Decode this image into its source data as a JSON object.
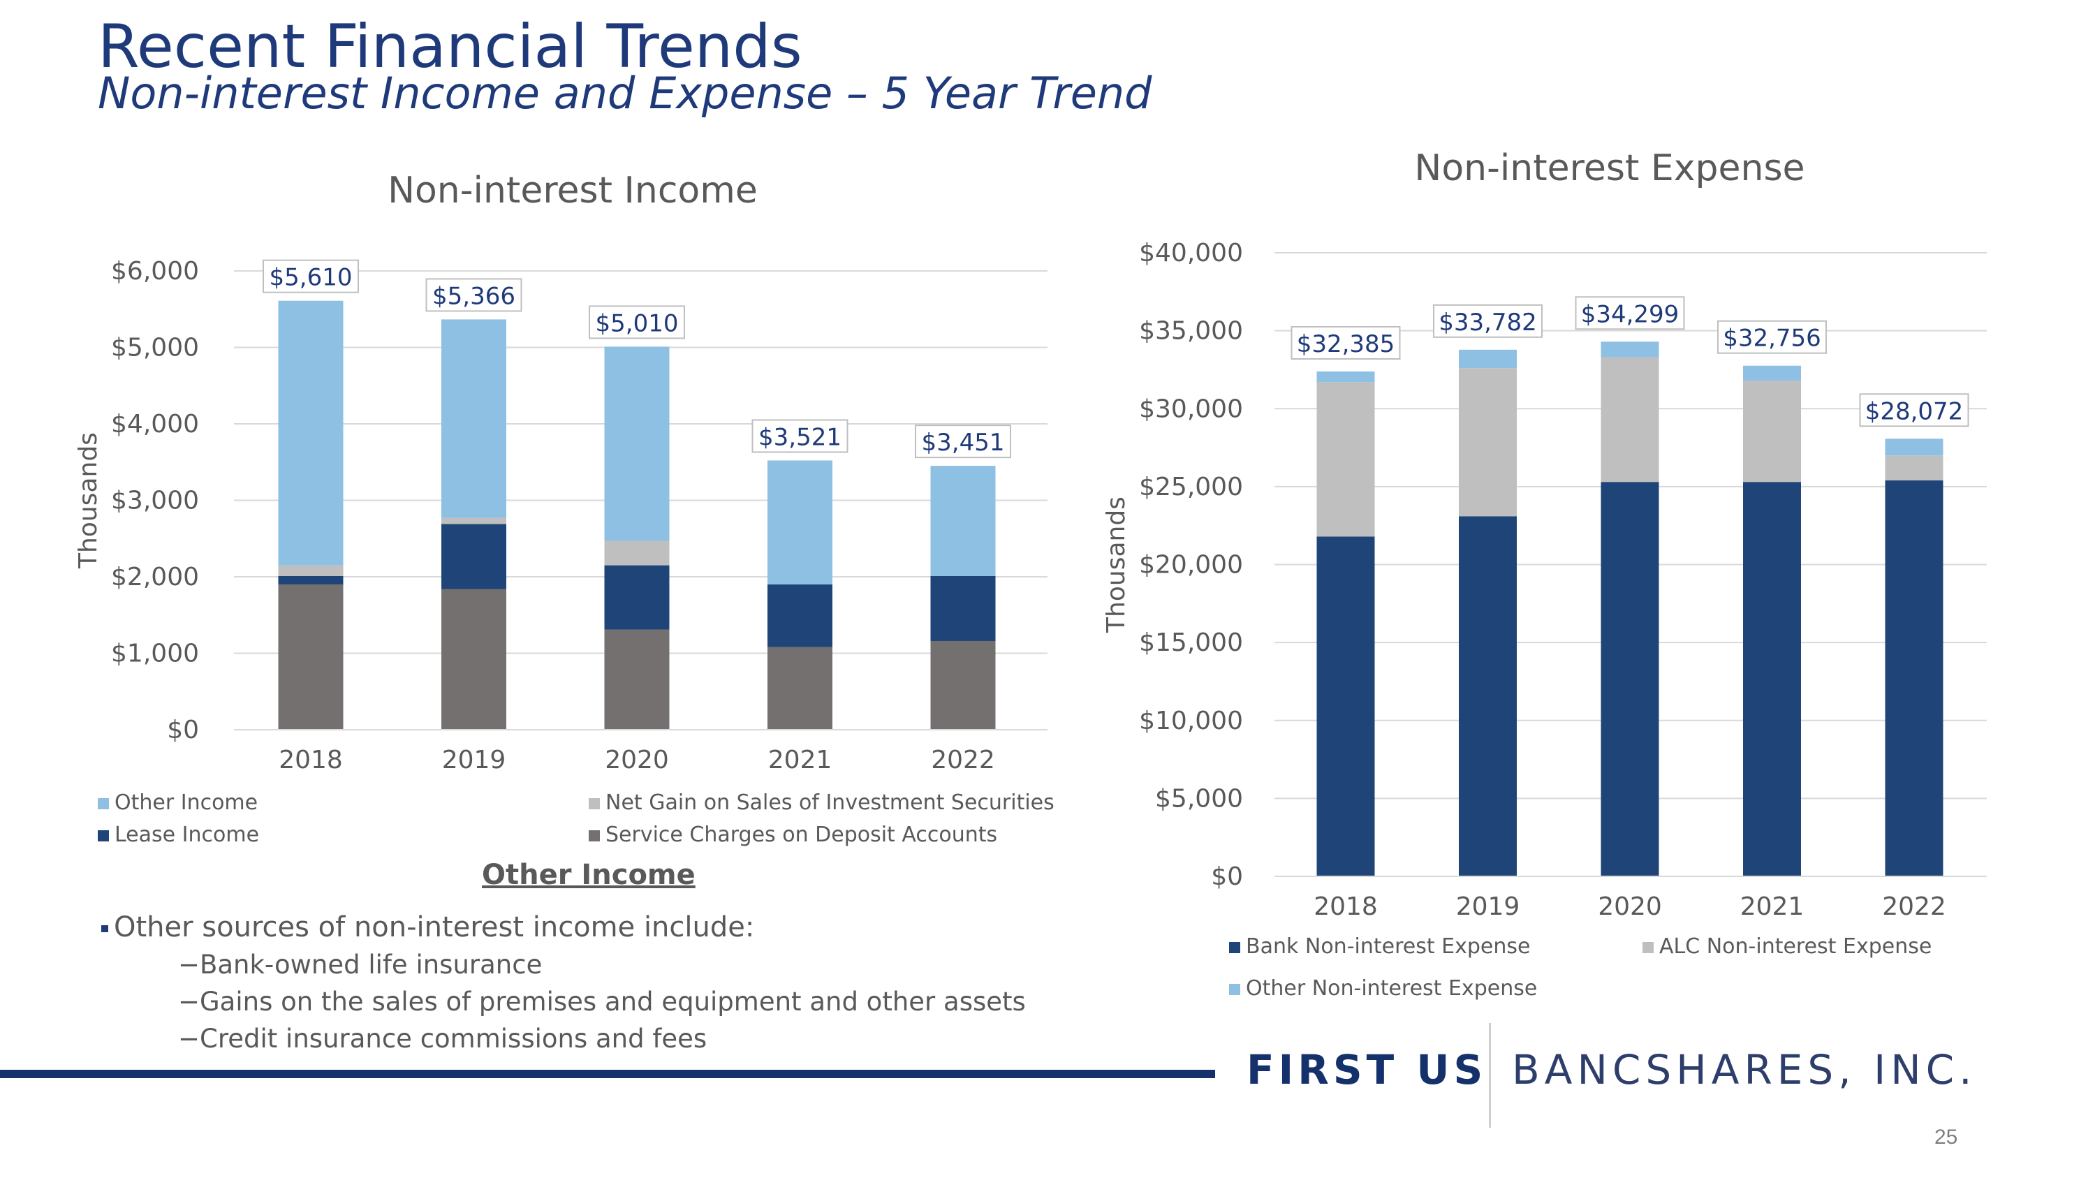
{
  "slide": {
    "title": "Recent Financial Trends",
    "subtitle": "Non-interest Income and Expense – 5 Year Trend",
    "page_number": "25"
  },
  "colors": {
    "title": "#1f3a7a",
    "other_income": "#8ec0e4",
    "net_gain": "#bfbfbf",
    "lease_income": "#1f4478",
    "service_charges": "#747070",
    "bank_expense": "#1f4478",
    "alc_expense": "#bfbfbf",
    "other_expense": "#8ec0e4",
    "footer": "#15316b"
  },
  "chart_data": [
    {
      "type": "bar",
      "stacked": true,
      "title": "Non-interest Income",
      "ylabel": "Thousands",
      "ylim": [
        0,
        6000
      ],
      "yticks": [
        "$0",
        "$1,000",
        "$2,000",
        "$3,000",
        "$4,000",
        "$5,000",
        "$6,000"
      ],
      "grid": true,
      "categories": [
        "2018",
        "2019",
        "2020",
        "2021",
        "2022"
      ],
      "series": [
        {
          "name": "Service Charges on Deposit Accounts",
          "values": [
            1900,
            1840,
            1310,
            1080,
            1160
          ]
        },
        {
          "name": "Lease Income",
          "values": [
            110,
            850,
            840,
            820,
            850
          ]
        },
        {
          "name": "Net Gain on Sales of Investment Securities",
          "values": [
            140,
            80,
            320,
            0,
            0
          ]
        },
        {
          "name": "Other Income",
          "values": [
            3460,
            2596,
            2540,
            1621,
            1441
          ]
        }
      ],
      "totals": [
        5610,
        5366,
        5010,
        3521,
        3451
      ],
      "total_labels": [
        "$5,610",
        "$5,366",
        "$5,010",
        "$3,521",
        "$3,451"
      ],
      "legend_rows": [
        [
          "Other Income",
          "Net Gain on Sales of Investment Securities"
        ],
        [
          "Lease Income",
          "Service Charges on Deposit Accounts"
        ]
      ],
      "legend_placement": "bottom"
    },
    {
      "type": "bar",
      "stacked": true,
      "title": "Non-interest Expense",
      "ylabel": "Thousands",
      "ylim": [
        0,
        40000
      ],
      "yticks": [
        "$0",
        "$5,000",
        "$10,000",
        "$15,000",
        "$20,000",
        "$25,000",
        "$30,000",
        "$35,000",
        "$40,000"
      ],
      "grid": true,
      "categories": [
        "2018",
        "2019",
        "2020",
        "2021",
        "2022"
      ],
      "series": [
        {
          "name": "Bank Non-interest Expense",
          "values": [
            21800,
            23100,
            25300,
            25300,
            25400
          ]
        },
        {
          "name": "ALC Non-interest Expense",
          "values": [
            9900,
            9500,
            8000,
            6500,
            1600
          ]
        },
        {
          "name": "Other Non-interest Expense",
          "values": [
            685,
            1182,
            999,
            956,
            1072
          ]
        }
      ],
      "totals": [
        32385,
        33782,
        34299,
        32756,
        28072
      ],
      "total_labels": [
        "$32,385",
        "$33,782",
        "$34,299",
        "$32,756",
        "$28,072"
      ],
      "legend_rows": [
        [
          "Bank Non-interest Expense",
          "ALC Non-interest Expense"
        ],
        [
          "Other Non-interest Expense"
        ]
      ],
      "legend_placement": "bottom"
    }
  ],
  "other_income": {
    "heading": "Other Income",
    "main_bullet": "Other sources of non-interest income include:",
    "sub_bullets": [
      "−Bank-owned life insurance",
      "−Gains on the sales of premises and equipment and other assets",
      "−Credit insurance commissions and fees"
    ]
  },
  "footer": {
    "brand_bold": "FIRST US",
    "brand_light": "BANCSHARES, INC."
  }
}
